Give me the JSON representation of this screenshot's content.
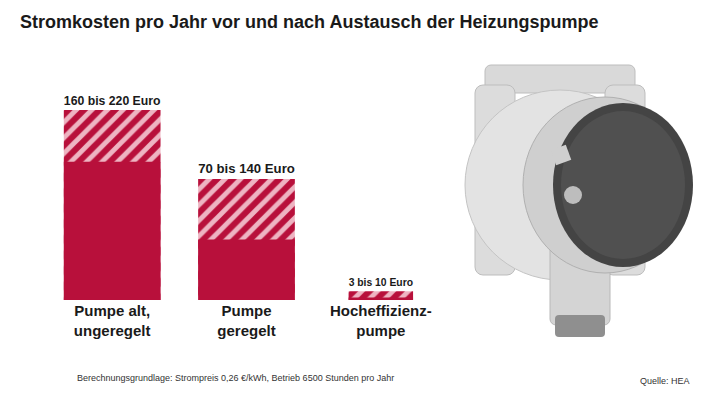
{
  "chart_data": {
    "type": "bar",
    "title": "Stromkosten pro Jahr vor und nach Austausch der Heizungspumpe",
    "categories": [
      "Pumpe alt,\nungeregelt",
      "Pumpe\ngeregelt",
      "Hocheffizienz-\npumpe"
    ],
    "series": [
      {
        "values": [
          220,
          140,
          10
        ],
        "color": "#b8103b",
        "marker": "hatched",
        "value_labels": [
          "160 bis 220 Euro",
          "70 bis 140 Euro",
          "3 bis 10 Euro"
        ]
      },
      {
        "values": [
          160,
          70,
          3
        ],
        "color": "#b8103b",
        "marker": "solid"
      }
    ],
    "ylim": [
      0,
      220
    ],
    "stacked": false,
    "data_labels": true,
    "tick_labels": "x",
    "note": "Berechnungsgrundlage: Strompreis 0,26 €/kWh, Betrieb 6500 Stunden pro Jahr",
    "source": "Quelle: HEA"
  }
}
